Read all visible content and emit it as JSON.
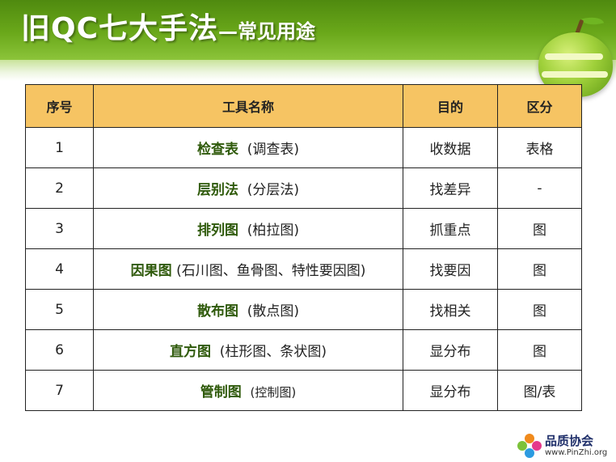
{
  "title": {
    "main": "旧QC七大手法",
    "sub": "—常见用途"
  },
  "table": {
    "headers": [
      "序号",
      "工具名称",
      "目的",
      "区分"
    ],
    "rows": [
      {
        "no": "1",
        "name": "检查表",
        "alias": "(调查表)",
        "purpose": "收数据",
        "category": "表格"
      },
      {
        "no": "2",
        "name": "层别法",
        "alias": "(分层法)",
        "purpose": "找差异",
        "category": "-"
      },
      {
        "no": "3",
        "name": "排列图",
        "alias": "(柏拉图)",
        "purpose": "抓重点",
        "category": "图"
      },
      {
        "no": "4",
        "name": "因果图",
        "alias": "(石川图、鱼骨图、特性要因图)",
        "purpose": "找要因",
        "category": "图"
      },
      {
        "no": "5",
        "name": "散布图",
        "alias": "(散点图)",
        "purpose": "找相关",
        "category": "图"
      },
      {
        "no": "6",
        "name": "直方图",
        "alias": "(柱形图、条状图)",
        "purpose": "显分布",
        "category": "图"
      },
      {
        "no": "7",
        "name": "管制图",
        "alias": "(控制图)",
        "purpose": "显分布",
        "category": "图/表"
      }
    ]
  },
  "logo": {
    "name": "品质协会",
    "url": "www.PinZhi.org"
  },
  "colors": {
    "header_green": "#6aa81a",
    "table_header": "#f6c463",
    "tool_name": "#2f5a0b"
  }
}
